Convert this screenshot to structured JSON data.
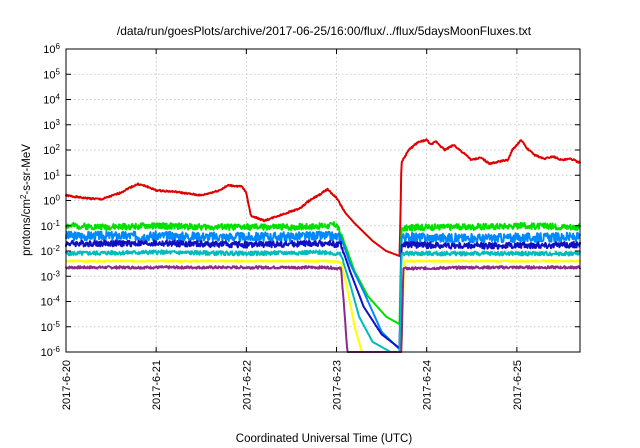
{
  "chart_data": {
    "type": "line",
    "title": "/data/run/goesPlots/archive/2017-06-25/16:00/flux/../flux/5daysMoonFluxes.txt",
    "xlabel": "Coordinated Universal Time (UTC)",
    "ylabel": {
      "base": "protons/cm",
      "sup": "2",
      "rest": "-s-sr-MeV"
    },
    "xlim": [
      0,
      5.7
    ],
    "ylim_log10": [
      -6,
      6
    ],
    "y_scale": "log",
    "grid": true,
    "x_ticks": [
      {
        "x": 0,
        "label": "2017-6-20"
      },
      {
        "x": 1,
        "label": "2017-6-21"
      },
      {
        "x": 2,
        "label": "2017-6-22"
      },
      {
        "x": 3,
        "label": "2017-6-23"
      },
      {
        "x": 4,
        "label": "2017-6-24"
      },
      {
        "x": 5,
        "label": "2017-6-25"
      }
    ],
    "y_ticks": [
      {
        "exp": -6,
        "base": "10",
        "sup": "-6"
      },
      {
        "exp": -5,
        "base": "10",
        "sup": "-5"
      },
      {
        "exp": -4,
        "base": "10",
        "sup": "-4"
      },
      {
        "exp": -3,
        "base": "10",
        "sup": "-3"
      },
      {
        "exp": -2,
        "base": "10",
        "sup": "-2"
      },
      {
        "exp": -1,
        "base": "10",
        "sup": "-1"
      },
      {
        "exp": 0,
        "base": "10",
        "sup": "0"
      },
      {
        "exp": 1,
        "base": "10",
        "sup": "1"
      },
      {
        "exp": 2,
        "base": "10",
        "sup": "2"
      },
      {
        "exp": 3,
        "base": "10",
        "sup": "3"
      },
      {
        "exp": 4,
        "base": "10",
        "sup": "4"
      },
      {
        "exp": 5,
        "base": "10",
        "sup": "5"
      },
      {
        "exp": 6,
        "base": "10",
        "sup": "6"
      }
    ],
    "series": [
      {
        "color": "#e00000",
        "noise": 0.03,
        "seed": 1,
        "log10_points": [
          [
            0,
            0.2
          ],
          [
            0.2,
            0.1
          ],
          [
            0.4,
            0.05
          ],
          [
            0.6,
            0.3
          ],
          [
            0.7,
            0.5
          ],
          [
            0.8,
            0.65
          ],
          [
            0.9,
            0.55
          ],
          [
            1.0,
            0.4
          ],
          [
            1.2,
            0.35
          ],
          [
            1.5,
            0.2
          ],
          [
            1.7,
            0.4
          ],
          [
            1.8,
            0.6
          ],
          [
            1.95,
            0.55
          ],
          [
            2.0,
            0.3
          ],
          [
            2.05,
            -0.6
          ],
          [
            2.2,
            -0.8
          ],
          [
            2.4,
            -0.55
          ],
          [
            2.6,
            -0.3
          ],
          [
            2.7,
            0.0
          ],
          [
            2.8,
            0.2
          ],
          [
            2.9,
            0.45
          ],
          [
            3.0,
            0.1
          ],
          [
            3.1,
            -0.5
          ],
          [
            3.2,
            -0.9
          ],
          [
            3.4,
            -1.6
          ],
          [
            3.55,
            -2.0
          ],
          [
            3.7,
            -2.2
          ],
          [
            3.72,
            1.5
          ],
          [
            3.8,
            2.0
          ],
          [
            3.9,
            2.3
          ],
          [
            4.0,
            2.4
          ],
          [
            4.05,
            2.2
          ],
          [
            4.1,
            2.35
          ],
          [
            4.2,
            2.0
          ],
          [
            4.3,
            2.2
          ],
          [
            4.4,
            1.9
          ],
          [
            4.5,
            1.6
          ],
          [
            4.6,
            1.7
          ],
          [
            4.7,
            1.45
          ],
          [
            4.8,
            1.55
          ],
          [
            4.9,
            1.6
          ],
          [
            4.95,
            2.0
          ],
          [
            5.0,
            2.2
          ],
          [
            5.05,
            2.4
          ],
          [
            5.1,
            2.1
          ],
          [
            5.2,
            1.8
          ],
          [
            5.3,
            1.65
          ],
          [
            5.4,
            1.75
          ],
          [
            5.5,
            1.6
          ],
          [
            5.6,
            1.65
          ],
          [
            5.7,
            1.5
          ]
        ]
      },
      {
        "color": "#00e000",
        "noise": 0.12,
        "seed": 2,
        "log10_points": [
          [
            0,
            -1.0
          ],
          [
            0.5,
            -1.05
          ],
          [
            1.0,
            -1.0
          ],
          [
            1.5,
            -1.05
          ],
          [
            2.0,
            -1.05
          ],
          [
            2.5,
            -1.05
          ],
          [
            2.9,
            -1.0
          ],
          [
            3.0,
            -0.95
          ],
          [
            3.1,
            -1.8
          ],
          [
            3.2,
            -2.8
          ],
          [
            3.35,
            -3.8
          ],
          [
            3.55,
            -4.6
          ],
          [
            3.7,
            -4.9
          ],
          [
            3.72,
            -1.1
          ],
          [
            4.0,
            -1.05
          ],
          [
            4.5,
            -1.05
          ],
          [
            5.0,
            -1.0
          ],
          [
            5.7,
            -1.05
          ]
        ]
      },
      {
        "color": "#0088ff",
        "noise": 0.18,
        "seed": 3,
        "log10_points": [
          [
            0,
            -1.4
          ],
          [
            1.0,
            -1.4
          ],
          [
            2.0,
            -1.45
          ],
          [
            2.9,
            -1.4
          ],
          [
            3.05,
            -1.45
          ],
          [
            3.15,
            -2.5
          ],
          [
            3.3,
            -3.6
          ],
          [
            3.5,
            -5.2
          ],
          [
            3.7,
            -5.9
          ],
          [
            3.72,
            -1.45
          ],
          [
            4.5,
            -1.5
          ],
          [
            5.7,
            -1.45
          ]
        ]
      },
      {
        "color": "#1010c0",
        "noise": 0.12,
        "seed": 4,
        "log10_points": [
          [
            0,
            -1.7
          ],
          [
            1.0,
            -1.7
          ],
          [
            2.0,
            -1.75
          ],
          [
            2.9,
            -1.7
          ],
          [
            3.05,
            -1.75
          ],
          [
            3.15,
            -2.8
          ],
          [
            3.3,
            -4.2
          ],
          [
            3.5,
            -5.3
          ],
          [
            3.7,
            -5.85
          ],
          [
            3.72,
            -1.75
          ],
          [
            4.5,
            -1.8
          ],
          [
            5.7,
            -1.75
          ]
        ]
      },
      {
        "color": "#00bbbb",
        "noise": 0.08,
        "seed": 5,
        "log10_points": [
          [
            0,
            -2.1
          ],
          [
            1.0,
            -2.05
          ],
          [
            2.0,
            -2.1
          ],
          [
            2.9,
            -2.05
          ],
          [
            3.05,
            -2.15
          ],
          [
            3.15,
            -3.3
          ],
          [
            3.25,
            -4.6
          ],
          [
            3.4,
            -5.6
          ],
          [
            3.6,
            -6.0
          ],
          [
            3.7,
            -6.0
          ],
          [
            3.72,
            -2.1
          ],
          [
            4.5,
            -2.1
          ],
          [
            5.7,
            -2.1
          ]
        ]
      },
      {
        "color": "#ffff00",
        "noise": 0.03,
        "seed": 6,
        "log10_points": [
          [
            0,
            -2.4
          ],
          [
            1.0,
            -2.4
          ],
          [
            2.0,
            -2.4
          ],
          [
            2.9,
            -2.4
          ],
          [
            3.05,
            -2.45
          ],
          [
            3.12,
            -3.5
          ],
          [
            3.2,
            -5.0
          ],
          [
            3.28,
            -6.0
          ],
          [
            3.72,
            -6.0
          ],
          [
            3.75,
            -2.4
          ],
          [
            4.5,
            -2.4
          ],
          [
            5.7,
            -2.4
          ]
        ]
      },
      {
        "color": "#8b2a8b",
        "noise": 0.05,
        "seed": 7,
        "log10_points": [
          [
            0,
            -2.65
          ],
          [
            0.5,
            -2.65
          ],
          [
            1.0,
            -2.65
          ],
          [
            1.5,
            -2.65
          ],
          [
            2.0,
            -2.65
          ],
          [
            2.5,
            -2.65
          ],
          [
            2.9,
            -2.65
          ],
          [
            3.05,
            -2.7
          ],
          [
            3.08,
            -4.0
          ],
          [
            3.12,
            -6.0
          ],
          [
            3.72,
            -6.0
          ],
          [
            3.74,
            -2.7
          ],
          [
            4.5,
            -2.65
          ],
          [
            5.7,
            -2.65
          ]
        ]
      }
    ]
  }
}
